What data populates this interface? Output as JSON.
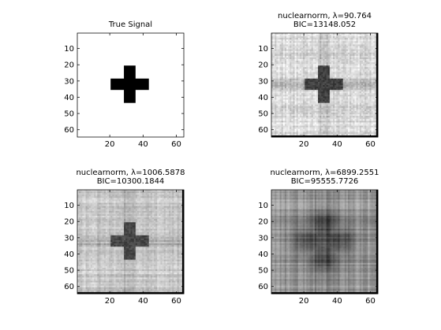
{
  "chart_data": [
    {
      "type": "heatmap",
      "pattern": "cross",
      "title": "True Signal",
      "title_lines": [
        "True Signal"
      ],
      "colormap": "gray",
      "size": [
        64,
        64
      ],
      "xlim": [
        0.5,
        64.5
      ],
      "ylim": [
        0.5,
        64.5
      ],
      "y_reversed": true,
      "xticks": [
        20,
        40,
        60
      ],
      "yticks": [
        10,
        20,
        30,
        40,
        50,
        60
      ],
      "xtick_labels": [
        "20",
        "40",
        "60"
      ],
      "ytick_labels": [
        "10",
        "20",
        "30",
        "40",
        "50",
        "60"
      ],
      "cross": {
        "center": [
          32,
          32
        ],
        "arm_half_length": 11,
        "arm_half_width": 3
      }
    },
    {
      "type": "heatmap",
      "pattern": "noisy-cross",
      "title": "nuclearnorm, λ=90.764 BIC=13148.052",
      "title_lines": [
        "nuclearnorm, λ=90.764",
        "BIC=13148.052"
      ],
      "lambda": 90.764,
      "bic": 13148.052,
      "colormap": "gray",
      "size": [
        64,
        64
      ],
      "xlim": [
        0.5,
        64.5
      ],
      "ylim": [
        0.5,
        64.5
      ],
      "y_reversed": true,
      "xticks": [
        20,
        40,
        60
      ],
      "yticks": [
        10,
        20,
        30,
        40,
        50,
        60
      ],
      "xtick_labels": [
        "20",
        "40",
        "60"
      ],
      "ytick_labels": [
        "10",
        "20",
        "30",
        "40",
        "50",
        "60"
      ],
      "background_level": 0.85,
      "cross_level": 0.25,
      "noise": 0.07
    },
    {
      "type": "heatmap",
      "pattern": "noisy-cross",
      "title": "nuclearnorm, λ=1006.5878 BIC=10300.1844",
      "title_lines": [
        "nuclearnorm, λ=1006.5878",
        "BIC=10300.1844"
      ],
      "lambda": 1006.5878,
      "bic": 10300.1844,
      "colormap": "gray",
      "size": [
        64,
        64
      ],
      "xlim": [
        0.5,
        64.5
      ],
      "ylim": [
        0.5,
        64.5
      ],
      "y_reversed": true,
      "xticks": [
        20,
        40,
        60
      ],
      "yticks": [
        10,
        20,
        30,
        40,
        50,
        60
      ],
      "xtick_labels": [
        "20",
        "40",
        "60"
      ],
      "ytick_labels": [
        "10",
        "20",
        "30",
        "40",
        "50",
        "60"
      ],
      "background_level": 0.78,
      "cross_level": 0.28,
      "noise": 0.05
    },
    {
      "type": "heatmap",
      "pattern": "blurred-cross",
      "title": "nuclearnorm, λ=6899.2551 BIC=95555.7726",
      "title_lines": [
        "nuclearnorm, λ=6899.2551",
        "BIC=95555.7726"
      ],
      "lambda": 6899.2551,
      "bic": 95555.7726,
      "colormap": "gray",
      "size": [
        64,
        64
      ],
      "xlim": [
        0.5,
        64.5
      ],
      "ylim": [
        0.5,
        64.5
      ],
      "y_reversed": true,
      "xticks": [
        20,
        40,
        60
      ],
      "yticks": [
        10,
        20,
        30,
        40,
        50,
        60
      ],
      "xtick_labels": [
        "20",
        "40",
        "60"
      ],
      "ytick_labels": [
        "10",
        "20",
        "30",
        "40",
        "50",
        "60"
      ],
      "background_level": 0.6,
      "cross_level": 0.35,
      "noise": 0.02
    }
  ]
}
